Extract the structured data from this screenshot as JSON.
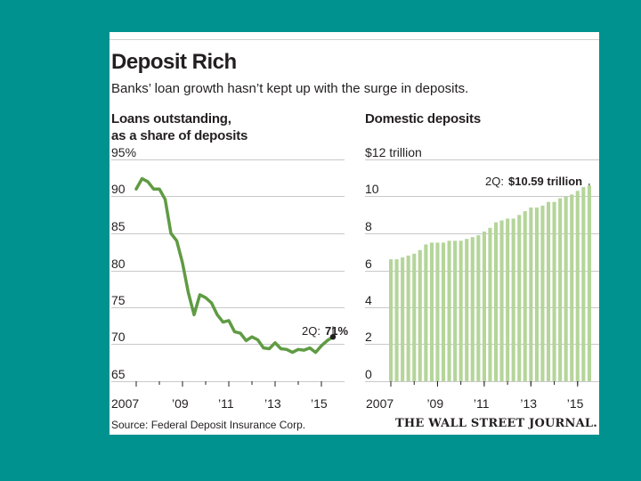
{
  "header": {
    "title": "Deposit Rich",
    "subtitle": "Banks’ loan growth hasn’t kept up with the surge in deposits."
  },
  "footer": {
    "source": "Source: Federal Deposit Insurance Corp.",
    "publisher": "THE WALL STREET JOURNAL."
  },
  "colors": {
    "background": "#00928f",
    "line": "#5f9b43",
    "bars": "#b5d59a",
    "grid": "#c8c8c8",
    "marker": "#231f20"
  },
  "chart_data": [
    {
      "type": "line",
      "title_lines": [
        "Loans outstanding,",
        "as a share of deposits"
      ],
      "ytick_labels": [
        "95%",
        "90",
        "85",
        "80",
        "75",
        "70",
        "65"
      ],
      "yticks": [
        95,
        90,
        85,
        80,
        75,
        70,
        65
      ],
      "ylim": [
        65,
        95
      ],
      "xlim": [
        2007.0,
        2016.0
      ],
      "xticks": [
        2007,
        2009,
        2011,
        2013,
        2015
      ],
      "xtick_labels": [
        "2007",
        "’09",
        "’11",
        "’13",
        "’15"
      ],
      "annotation": {
        "prefix": "2Q:",
        "value": "71%"
      },
      "x": [
        2007.0,
        2007.25,
        2007.5,
        2007.75,
        2008.0,
        2008.25,
        2008.5,
        2008.75,
        2009.0,
        2009.25,
        2009.5,
        2009.75,
        2010.0,
        2010.25,
        2010.5,
        2010.75,
        2011.0,
        2011.25,
        2011.5,
        2011.75,
        2012.0,
        2012.25,
        2012.5,
        2012.75,
        2013.0,
        2013.25,
        2013.5,
        2013.75,
        2014.0,
        2014.25,
        2014.5,
        2014.75,
        2015.0,
        2015.25,
        2015.5
      ],
      "values": [
        91.0,
        92.4,
        92.0,
        91.0,
        91.0,
        89.6,
        85.0,
        84.0,
        81.0,
        77.0,
        74.0,
        76.7,
        76.3,
        75.6,
        74.0,
        73.0,
        73.2,
        71.7,
        71.5,
        70.5,
        71.0,
        70.6,
        69.5,
        69.4,
        70.2,
        69.4,
        69.3,
        68.9,
        69.3,
        69.2,
        69.5,
        68.9,
        69.8,
        70.5,
        71.0
      ]
    },
    {
      "type": "bar",
      "title_lines": [
        "Domestic deposits"
      ],
      "ytick_labels": [
        "$12 trillion",
        "10",
        "8",
        "6",
        "4",
        "2",
        "0"
      ],
      "yticks": [
        12,
        10,
        8,
        6,
        4,
        2,
        0
      ],
      "ylim": [
        0,
        12
      ],
      "xlim": [
        2007.0,
        2016.0
      ],
      "xticks": [
        2007,
        2009,
        2011,
        2013,
        2015
      ],
      "xtick_labels": [
        "2007",
        "’09",
        "’11",
        "’13",
        "’15"
      ],
      "annotation": {
        "prefix": "2Q:",
        "value": "$10.59 trillion"
      },
      "x": [
        2007.0,
        2007.25,
        2007.5,
        2007.75,
        2008.0,
        2008.25,
        2008.5,
        2008.75,
        2009.0,
        2009.25,
        2009.5,
        2009.75,
        2010.0,
        2010.25,
        2010.5,
        2010.75,
        2011.0,
        2011.25,
        2011.5,
        2011.75,
        2012.0,
        2012.25,
        2012.5,
        2012.75,
        2013.0,
        2013.25,
        2013.5,
        2013.75,
        2014.0,
        2014.25,
        2014.5,
        2014.75,
        2015.0,
        2015.25,
        2015.5
      ],
      "values": [
        6.6,
        6.6,
        6.7,
        6.8,
        6.9,
        7.1,
        7.4,
        7.5,
        7.5,
        7.5,
        7.6,
        7.6,
        7.6,
        7.7,
        7.8,
        7.9,
        8.1,
        8.3,
        8.6,
        8.7,
        8.8,
        8.8,
        9.0,
        9.2,
        9.4,
        9.4,
        9.5,
        9.7,
        9.7,
        9.9,
        10.0,
        10.1,
        10.3,
        10.5,
        10.59
      ]
    }
  ]
}
